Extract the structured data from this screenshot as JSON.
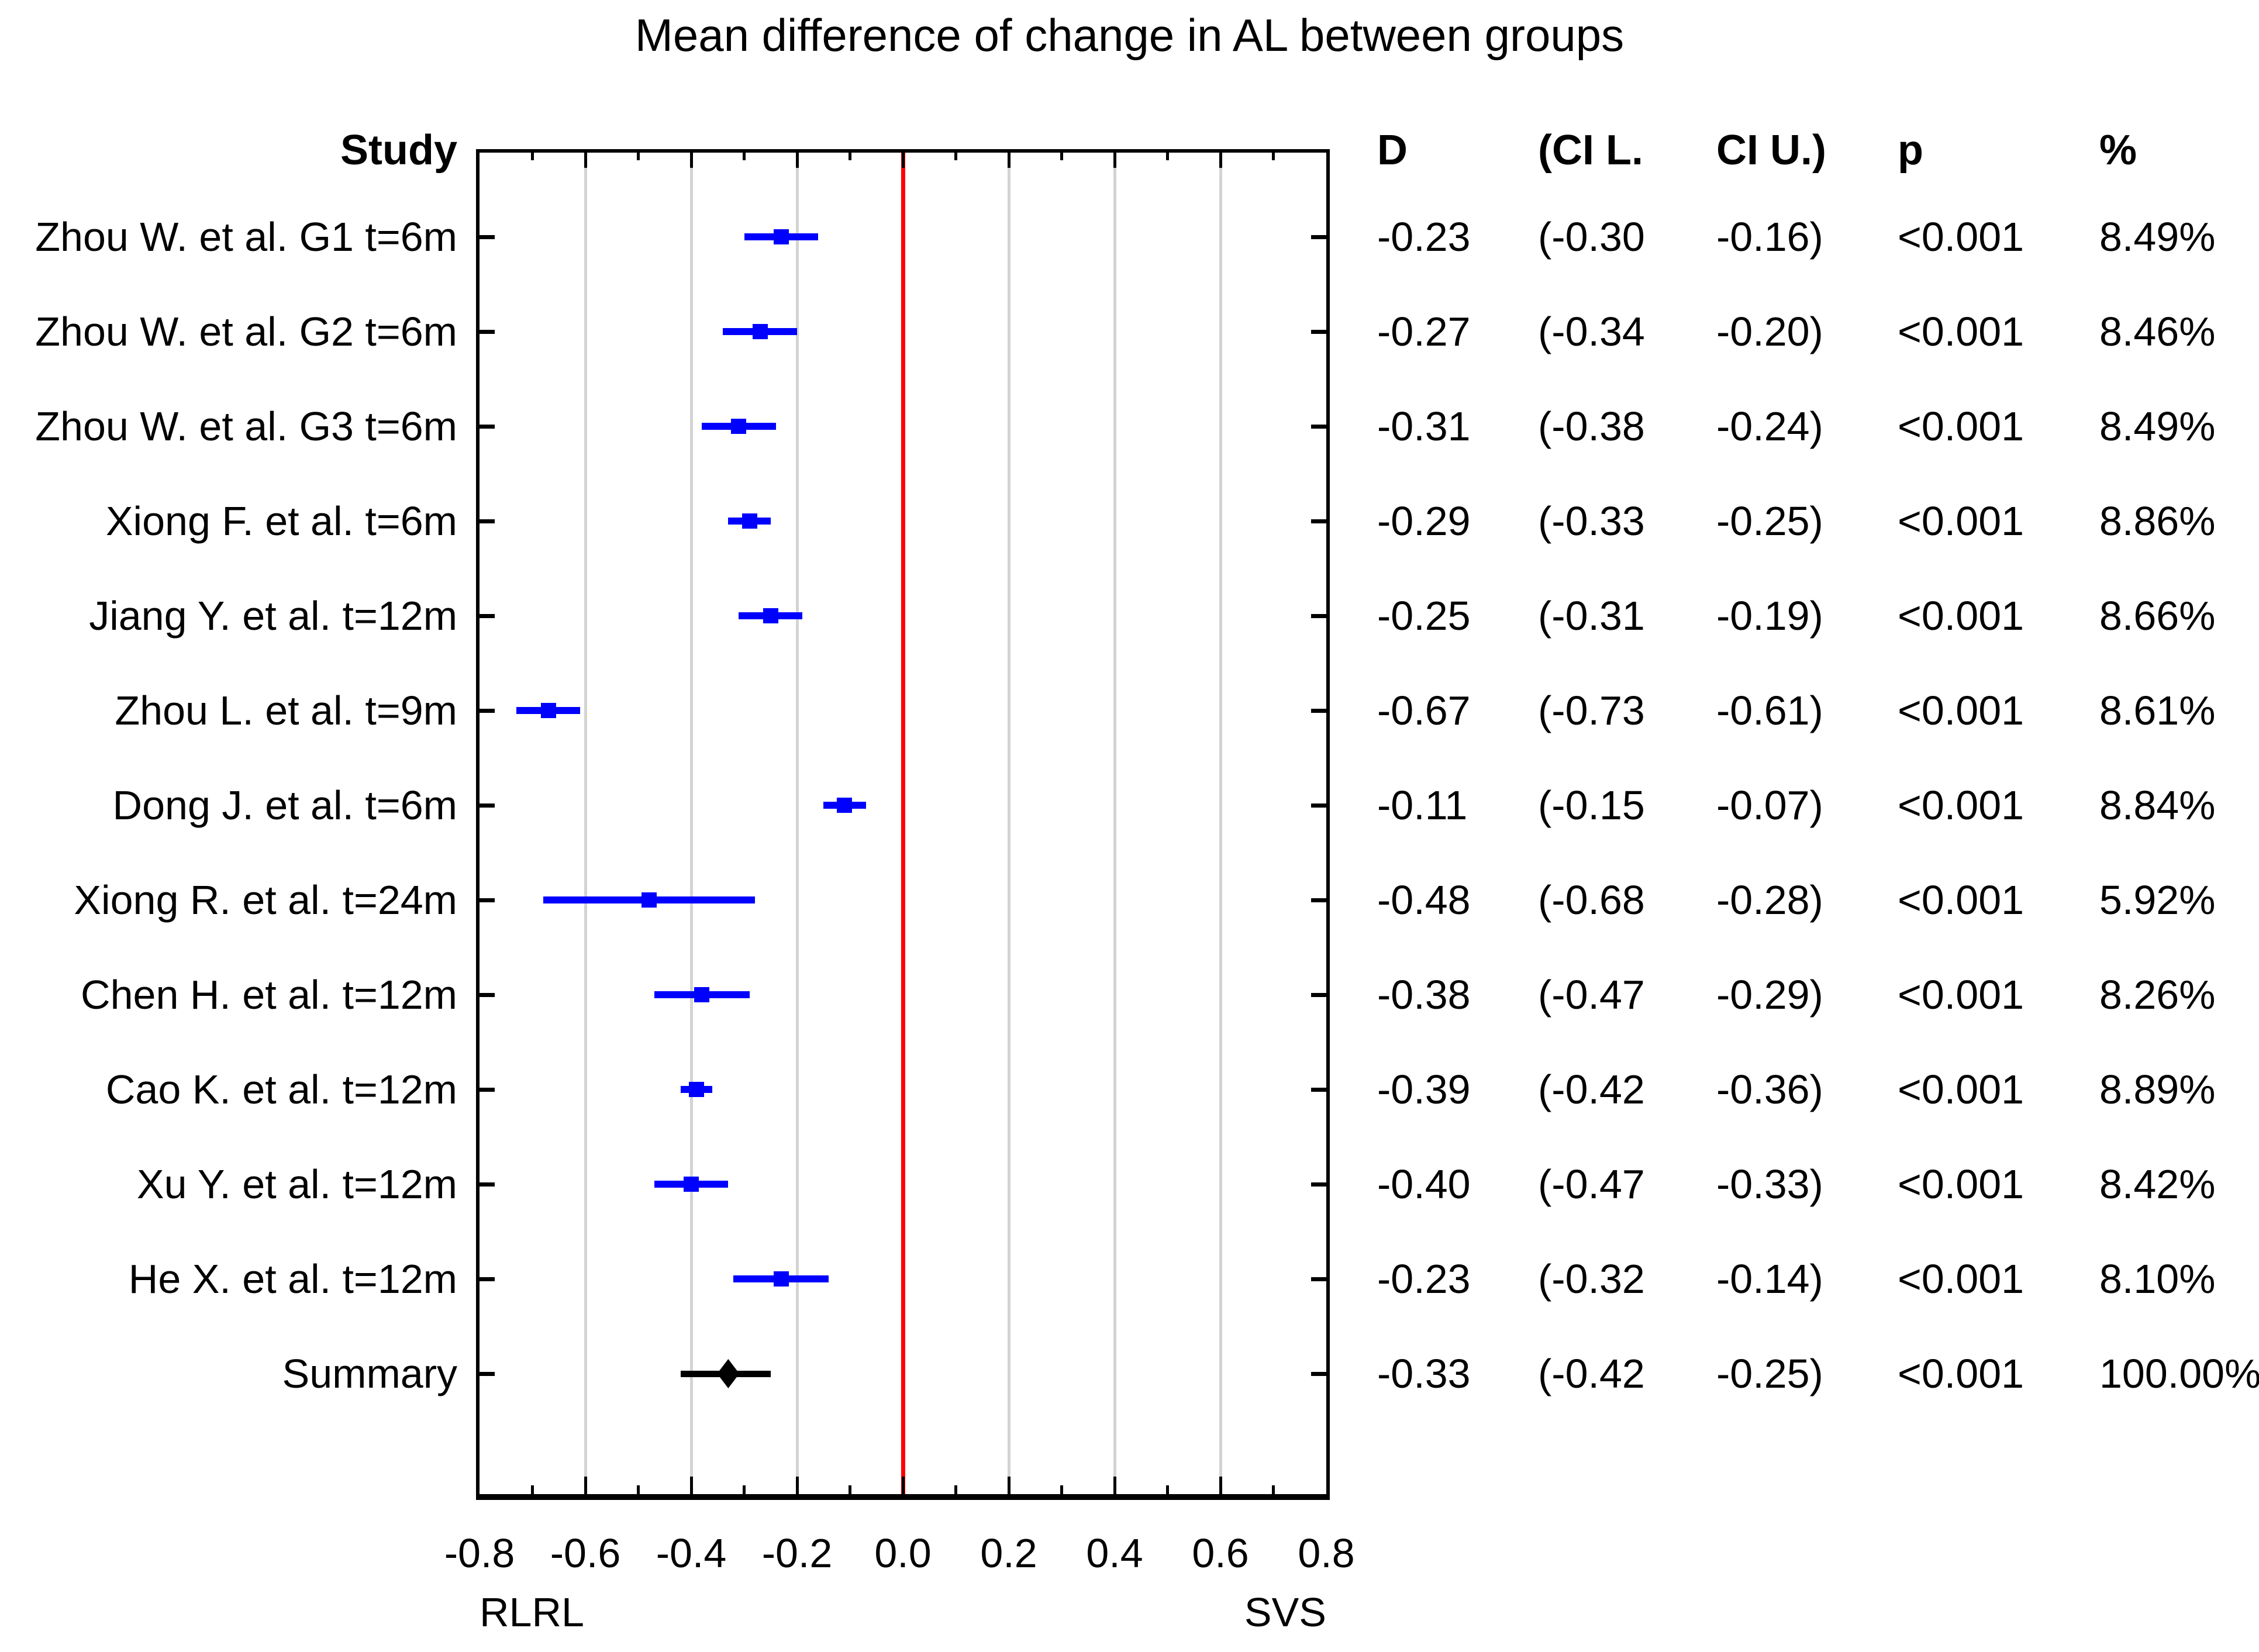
{
  "title": "Mean difference of change in AL between groups",
  "headers": {
    "study": "Study",
    "d": "D",
    "ci_l": "(CI L.",
    "ci_u": "CI U.)",
    "p": "p",
    "weight": "%"
  },
  "axis": {
    "tick_labels": [
      "-0.8",
      "-0.6",
      "-0.4",
      "-0.2",
      "0.0",
      "0.2",
      "0.4",
      "0.6",
      "0.8"
    ],
    "group_label_left": "RLRL",
    "group_label_right": "SVS"
  },
  "colors": {
    "marker": "#0000ff",
    "zero_line": "#ff0000",
    "gridline": "#d3d3d3",
    "summary": "#000000"
  },
  "chart_data": {
    "type": "forest",
    "title": "Mean difference of change in AL between groups",
    "xlim": [
      -0.8,
      0.8
    ],
    "major_tick_step": 0.2,
    "minor_tick_step": 0.1,
    "gridlines": [
      -0.6,
      -0.4,
      -0.2,
      0.2,
      0.4,
      0.6
    ],
    "zero_line": 0.0,
    "xlabel_left": "RLRL",
    "xlabel_right": "SVS",
    "columns": [
      "Study",
      "D",
      "(CI L.",
      "CI U.)",
      "p",
      "%"
    ],
    "rows": [
      {
        "label": "Zhou W. et al. G1 t=6m",
        "d": -0.23,
        "lo": -0.3,
        "hi": -0.16,
        "d_text": "-0.23",
        "ci_l_text": "(-0.30",
        "ci_u_text": "-0.16)",
        "p_text": "<0.001",
        "weight_text": "8.49%",
        "summary": false
      },
      {
        "label": "Zhou W. et al. G2 t=6m",
        "d": -0.27,
        "lo": -0.34,
        "hi": -0.2,
        "d_text": "-0.27",
        "ci_l_text": "(-0.34",
        "ci_u_text": "-0.20)",
        "p_text": "<0.001",
        "weight_text": "8.46%",
        "summary": false
      },
      {
        "label": "Zhou W. et al. G3 t=6m",
        "d": -0.31,
        "lo": -0.38,
        "hi": -0.24,
        "d_text": "-0.31",
        "ci_l_text": "(-0.38",
        "ci_u_text": "-0.24)",
        "p_text": "<0.001",
        "weight_text": "8.49%",
        "summary": false
      },
      {
        "label": "Xiong F. et al. t=6m",
        "d": -0.29,
        "lo": -0.33,
        "hi": -0.25,
        "d_text": "-0.29",
        "ci_l_text": "(-0.33",
        "ci_u_text": "-0.25)",
        "p_text": "<0.001",
        "weight_text": "8.86%",
        "summary": false
      },
      {
        "label": "Jiang Y. et al. t=12m",
        "d": -0.25,
        "lo": -0.31,
        "hi": -0.19,
        "d_text": "-0.25",
        "ci_l_text": "(-0.31",
        "ci_u_text": "-0.19)",
        "p_text": "<0.001",
        "weight_text": "8.66%",
        "summary": false
      },
      {
        "label": "Zhou L. et al. t=9m",
        "d": -0.67,
        "lo": -0.73,
        "hi": -0.61,
        "d_text": "-0.67",
        "ci_l_text": "(-0.73",
        "ci_u_text": "-0.61)",
        "p_text": "<0.001",
        "weight_text": "8.61%",
        "summary": false
      },
      {
        "label": "Dong J. et al. t=6m",
        "d": -0.11,
        "lo": -0.15,
        "hi": -0.07,
        "d_text": "-0.11",
        "ci_l_text": "(-0.15",
        "ci_u_text": "-0.07)",
        "p_text": "<0.001",
        "weight_text": "8.84%",
        "summary": false
      },
      {
        "label": "Xiong R. et al. t=24m",
        "d": -0.48,
        "lo": -0.68,
        "hi": -0.28,
        "d_text": "-0.48",
        "ci_l_text": "(-0.68",
        "ci_u_text": "-0.28)",
        "p_text": "<0.001",
        "weight_text": "5.92%",
        "summary": false
      },
      {
        "label": "Chen H. et al. t=12m",
        "d": -0.38,
        "lo": -0.47,
        "hi": -0.29,
        "d_text": "-0.38",
        "ci_l_text": "(-0.47",
        "ci_u_text": "-0.29)",
        "p_text": "<0.001",
        "weight_text": "8.26%",
        "summary": false
      },
      {
        "label": "Cao K. et al. t=12m",
        "d": -0.39,
        "lo": -0.42,
        "hi": -0.36,
        "d_text": "-0.39",
        "ci_l_text": "(-0.42",
        "ci_u_text": "-0.36)",
        "p_text": "<0.001",
        "weight_text": "8.89%",
        "summary": false
      },
      {
        "label": "Xu Y. et al. t=12m",
        "d": -0.4,
        "lo": -0.47,
        "hi": -0.33,
        "d_text": "-0.40",
        "ci_l_text": "(-0.47",
        "ci_u_text": "-0.33)",
        "p_text": "<0.001",
        "weight_text": "8.42%",
        "summary": false
      },
      {
        "label": "He X. et al. t=12m",
        "d": -0.23,
        "lo": -0.32,
        "hi": -0.14,
        "d_text": "-0.23",
        "ci_l_text": "(-0.32",
        "ci_u_text": "-0.14)",
        "p_text": "<0.001",
        "weight_text": "8.10%",
        "summary": false
      },
      {
        "label": "Summary",
        "d": -0.33,
        "lo": -0.42,
        "hi": -0.25,
        "d_text": "-0.33",
        "ci_l_text": "(-0.42",
        "ci_u_text": "-0.25)",
        "p_text": "<0.001",
        "weight_text": "100.00%",
        "summary": true
      }
    ]
  }
}
